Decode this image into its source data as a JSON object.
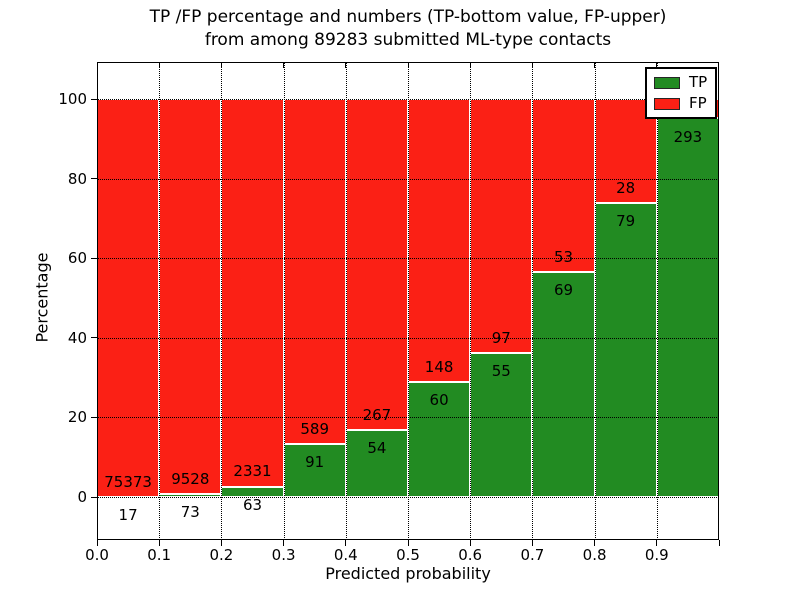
{
  "title": {
    "line1": "TP /FP percentage and numbers (TP-bottom value, FP-upper)",
    "line2": "from among 89283 submitted ML-type contacts"
  },
  "chart_data": {
    "type": "bar",
    "stacked": true,
    "units": "percent",
    "title": "TP /FP percentage and numbers (TP-bottom value, FP-upper)\nfrom among 89283 submitted ML-type contacts",
    "xlabel": "Predicted probability",
    "ylabel": "Percentage",
    "total_contacts": 89283,
    "x_tick_labels": [
      "0.0",
      "0.1",
      "0.2",
      "0.3",
      "0.4",
      "0.5",
      "0.6",
      "0.7",
      "0.8",
      "0.9"
    ],
    "y_ticks": [
      0,
      20,
      40,
      60,
      80,
      100
    ],
    "ylim": [
      -11,
      109
    ],
    "xlim": [
      0.0,
      1.0
    ],
    "bin_width": 0.1,
    "grid": "dotted",
    "bins": [
      {
        "x_start": 0.0,
        "tp": 17,
        "fp": 75373,
        "tp_pct": 0.02
      },
      {
        "x_start": 0.1,
        "tp": 73,
        "fp": 9528,
        "tp_pct": 0.76
      },
      {
        "x_start": 0.2,
        "tp": 63,
        "fp": 2331,
        "tp_pct": 2.63
      },
      {
        "x_start": 0.3,
        "tp": 91,
        "fp": 589,
        "tp_pct": 13.38
      },
      {
        "x_start": 0.4,
        "tp": 54,
        "fp": 267,
        "tp_pct": 16.82
      },
      {
        "x_start": 0.5,
        "tp": 60,
        "fp": 148,
        "tp_pct": 28.85
      },
      {
        "x_start": 0.6,
        "tp": 55,
        "fp": 97,
        "tp_pct": 36.18
      },
      {
        "x_start": 0.7,
        "tp": 69,
        "fp": 53,
        "tp_pct": 56.56
      },
      {
        "x_start": 0.8,
        "tp": 79,
        "fp": 28,
        "tp_pct": 73.83
      },
      {
        "x_start": 0.9,
        "tp": 293,
        "fp": null,
        "tp_pct": 95.13,
        "fp_label_hidden_behind_legend": true
      }
    ],
    "legend": {
      "position": "upper right",
      "entries": [
        {
          "label": "TP",
          "color": "#228b22"
        },
        {
          "label": "FP",
          "color": "#fb2015"
        }
      ]
    }
  },
  "colors": {
    "tp_green": "#228b22",
    "fp_red": "#fb2015",
    "axis": "#000000",
    "background": "#ffffff"
  }
}
